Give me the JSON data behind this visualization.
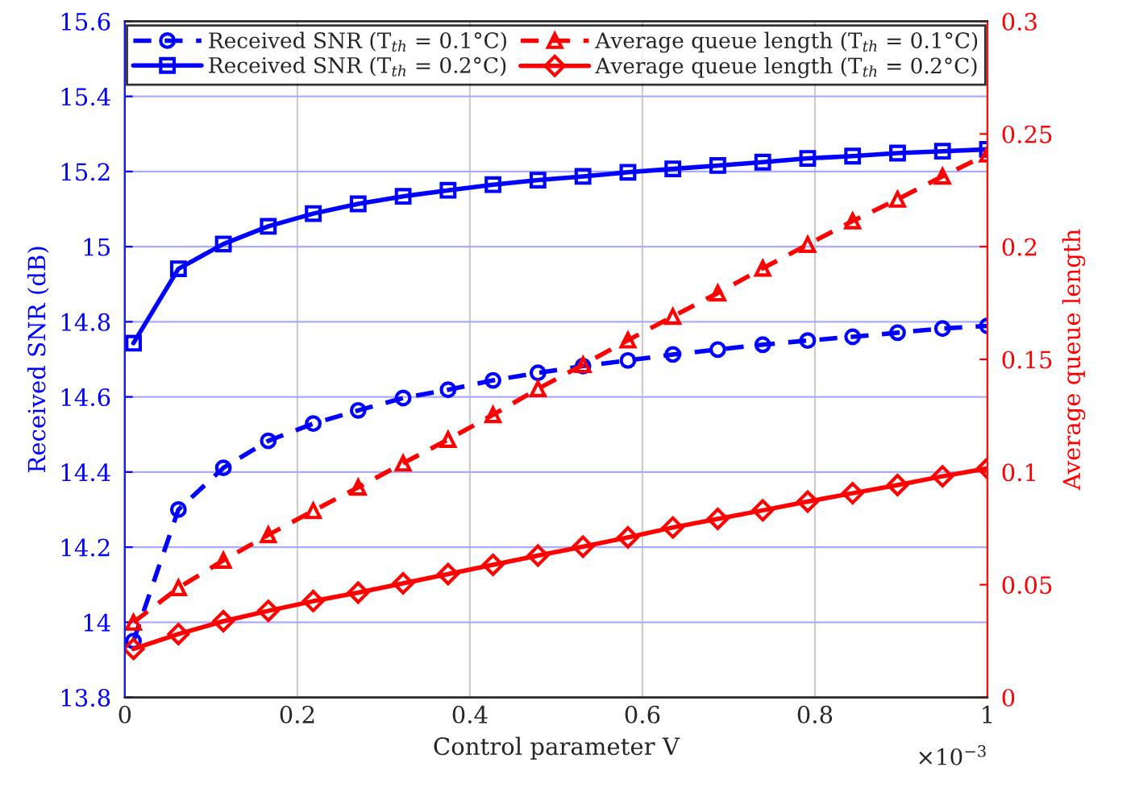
{
  "chart_data": {
    "type": "line",
    "xlabel": "Control parameter V",
    "ylabel": "Received SNR (dB)",
    "y2label": "Average queue length",
    "annotations": [
      "×10$^{−3}$"
    ],
    "x": [
      0.01,
      0.0621,
      0.1142,
      0.1663,
      0.2184,
      0.2705,
      0.3226,
      0.3747,
      0.4268,
      0.4789,
      0.5311,
      0.5832,
      0.6353,
      0.6874,
      0.7395,
      0.7916,
      0.8437,
      0.8958,
      0.9479,
      1.0
    ],
    "series": [
      {
        "name": "Received SNR (T$_{th}$ = 0.1°C)",
        "color": "#0000ff",
        "line_style": "dashed",
        "marker": "circle",
        "values": [
          13.95,
          14.3,
          14.411,
          14.483,
          14.529,
          14.564,
          14.597,
          14.619,
          14.644,
          14.664,
          14.682,
          14.697,
          14.713,
          14.726,
          14.739,
          14.75,
          14.76,
          14.771,
          14.782,
          14.789
        ]
      },
      {
        "name": "Received SNR (T$_{th}$ = 0.2°C)",
        "color": "#0000ff",
        "line_style": "solid",
        "marker": "square",
        "values": [
          14.743,
          14.941,
          15.007,
          15.054,
          15.088,
          15.114,
          15.134,
          15.15,
          15.165,
          15.177,
          15.187,
          15.198,
          15.207,
          15.216,
          15.225,
          15.235,
          15.241,
          15.249,
          15.254,
          15.259
        ]
      },
      {
        "name": "Average queue length (T$_{th}$ = 0.1°C)",
        "color": "#ff0000",
        "line_style": "dashed",
        "marker": "triangle",
        "axis": "y2",
        "values": [
          0.0333,
          0.0486,
          0.0608,
          0.0721,
          0.0828,
          0.0932,
          0.1039,
          0.1144,
          0.1254,
          0.1369,
          0.1476,
          0.1585,
          0.169,
          0.1794,
          0.1904,
          0.2009,
          0.2114,
          0.221,
          0.2312,
          0.241
        ]
      },
      {
        "name": "Average queue length (T$_{th}$ = 0.2°C)",
        "color": "#ff0000",
        "line_style": "solid",
        "marker": "diamond",
        "axis": "y2",
        "values": [
          0.0215,
          0.0281,
          0.0338,
          0.0384,
          0.0427,
          0.0465,
          0.0506,
          0.0547,
          0.0588,
          0.0629,
          0.0669,
          0.071,
          0.0754,
          0.0792,
          0.083,
          0.0869,
          0.0906,
          0.0942,
          0.0981,
          0.1016
        ]
      }
    ],
    "xlim": [
      0,
      1
    ],
    "xticks": [
      0,
      0.2,
      0.4,
      0.6,
      0.8,
      1
    ],
    "ylim": [
      13.8,
      15.6
    ],
    "yticks": [
      13.8,
      14,
      14.2,
      14.4,
      14.6,
      14.8,
      15,
      15.2,
      15.4,
      15.6
    ],
    "y2lim": [
      0,
      0.3
    ],
    "y2ticks": [
      0,
      0.05,
      0.1,
      0.15,
      0.2,
      0.25,
      0.3
    ],
    "grid": true,
    "legend": "top"
  }
}
